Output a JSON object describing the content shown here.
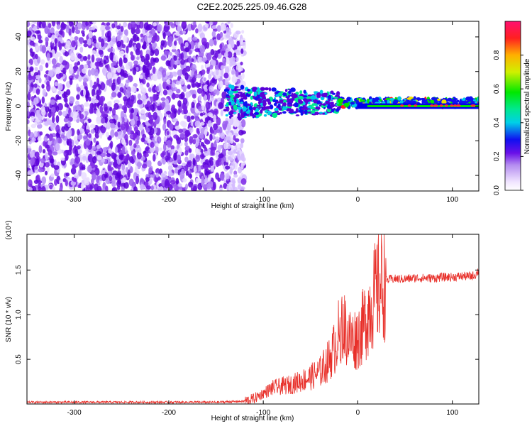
{
  "title": "C2E2.2025.225.09.46.G28",
  "chart_data": [
    {
      "type": "heatmap",
      "xlabel": "Height of straight line (km)",
      "ylabel": "Frequency (Hz)",
      "xlim": [
        -350,
        128
      ],
      "ylim": [
        -49,
        49
      ],
      "xticks": [
        -300,
        -200,
        -100,
        0,
        100
      ],
      "xtick_labels": [
        "-300",
        "-200",
        "-100",
        "0",
        "100"
      ],
      "yticks": [
        -40,
        -20,
        0,
        20,
        40
      ],
      "ytick_labels": [
        "-40",
        "-20",
        "0",
        "20",
        "40"
      ],
      "colorbar": {
        "label": "Normalized spectral amplitude",
        "range": [
          0,
          1
        ],
        "ticks": [
          0.0,
          0.2,
          0.4,
          0.6,
          0.8
        ],
        "tick_labels": [
          "0.0",
          "0.2",
          "0.4",
          "0.6",
          "0.8"
        ]
      },
      "grid": false
    },
    {
      "type": "line",
      "xlabel": "Height of straight line (km)",
      "ylabel": "SNR (10 * v/v)",
      "y_multiplier": "(x10⁴)",
      "xlim": [
        -350,
        128
      ],
      "ylim": [
        0,
        1.9
      ],
      "xticks": [
        -300,
        -200,
        -100,
        0,
        100
      ],
      "xtick_labels": [
        "-300",
        "-200",
        "-100",
        "0",
        "100"
      ],
      "yticks": [
        0.5,
        1.0,
        1.5
      ],
      "ytick_labels": [
        "0.5",
        "1.0",
        "1.5"
      ],
      "color": "#e8302a",
      "grid": false,
      "series": [
        {
          "x": [
            -350,
            -300,
            -250,
            -200,
            -150,
            -120,
            -110,
            -100,
            -90,
            -80,
            -70,
            -60,
            -50,
            -40,
            -30,
            -25,
            -20,
            -18,
            -16,
            -14,
            -10,
            -5,
            0,
            5,
            10,
            15,
            20,
            25,
            30,
            35,
            40,
            50,
            60,
            70,
            80,
            90,
            100,
            110,
            120,
            125,
            128
          ],
          "y": [
            0.02,
            0.02,
            0.02,
            0.02,
            0.02,
            0.03,
            0.06,
            0.12,
            0.18,
            0.2,
            0.22,
            0.26,
            0.3,
            0.36,
            0.5,
            0.62,
            0.8,
            0.9,
            0.95,
            0.85,
            0.75,
            0.72,
            0.75,
            0.85,
            1.0,
            1.15,
            1.25,
            1.35,
            1.38,
            1.4,
            1.4,
            1.4,
            1.41,
            1.41,
            1.41,
            1.42,
            1.42,
            1.43,
            1.43,
            1.45,
            1.5
          ]
        }
      ]
    }
  ]
}
